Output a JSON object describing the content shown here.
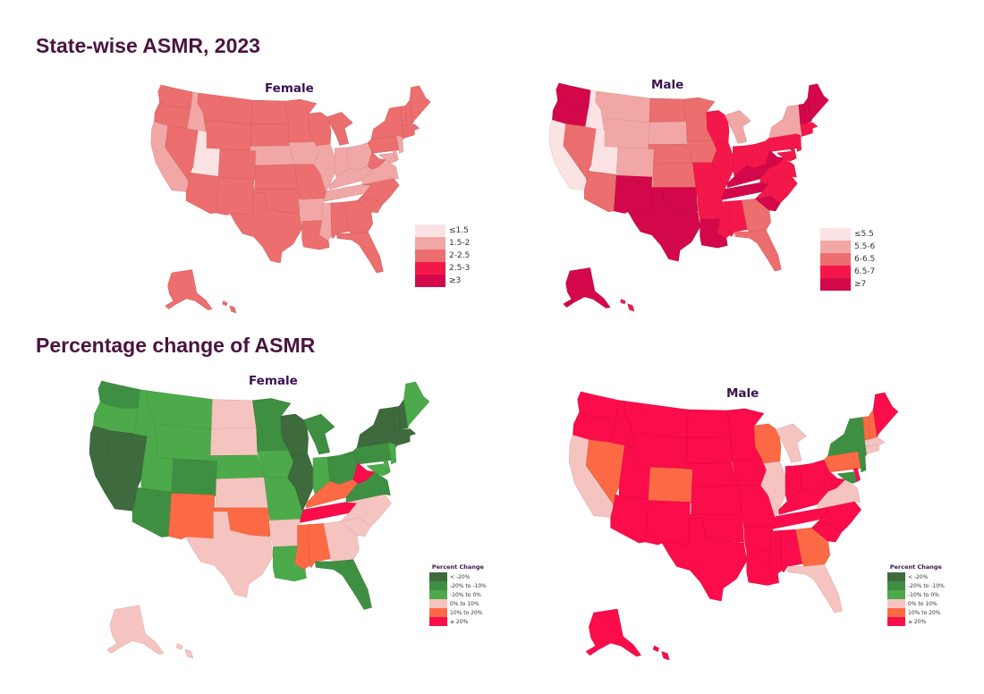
{
  "sections": [
    {
      "title": "State-wise ASMR, 2023",
      "maps": [
        {
          "title": "Female",
          "legend": {
            "title": "",
            "items": [
              {
                "label": "≤1.5",
                "color": "#fbe3e3"
              },
              {
                "label": "1.5-2",
                "color": "#f2a7a7"
              },
              {
                "label": "2-2.5",
                "color": "#ec6e6e"
              },
              {
                "label": "2.5-3",
                "color": "#f4184a"
              },
              {
                "label": "≥3",
                "color": "#d3084a"
              }
            ]
          },
          "default_class": 2,
          "states": {
            "UT": 0,
            "CA": 1,
            "ID": 1,
            "NE": 1,
            "IA": 1,
            "IL": 1,
            "IN": 1,
            "OH": 1,
            "KY": 1,
            "AR": 1,
            "MS": 1,
            "VA": 1,
            "MD": 1,
            "NJ": 1,
            "DE": 1,
            "TN": 1
          }
        },
        {
          "title": "Male",
          "legend": {
            "title": "",
            "items": [
              {
                "label": "≤5.5",
                "color": "#fbe3e3"
              },
              {
                "label": "5.5-6",
                "color": "#f2a7a7"
              },
              {
                "label": "6-6.5",
                "color": "#ec6e6e"
              },
              {
                "label": "6.5-7",
                "color": "#f4184a"
              },
              {
                "label": "≥7",
                "color": "#d3084a"
              }
            ]
          },
          "default_class": 3,
          "states": {
            "CA": 0,
            "UT": 0,
            "ID": 0,
            "MT": 1,
            "WY": 1,
            "CO": 1,
            "SD": 1,
            "MI": 1,
            "NY": 1,
            "NV": 2,
            "AZ": 2,
            "ND": 2,
            "NE": 2,
            "KS": 2,
            "IA": 2,
            "GA": 2,
            "FL": 2,
            "MN": 2,
            "OR": 4,
            "WA": 4,
            "NM": 4,
            "TX": 4,
            "OK": 4,
            "LA": 4,
            "KY": 4,
            "TN": 4,
            "WV": 4,
            "SC": 4,
            "ME": 4,
            "NH": 4,
            "VT": 4,
            "AK": 4
          }
        }
      ]
    },
    {
      "title": "Percentage change of ASMR",
      "maps": [
        {
          "title": "Female",
          "legend": {
            "title": "Percent Change",
            "items": [
              {
                "label": "< -20%",
                "color": "#3d6b3d"
              },
              {
                "label": "-20% to -10%",
                "color": "#3f8f43"
              },
              {
                "label": "-10% to 0%",
                "color": "#4caa4a"
              },
              {
                "label": "0% to 10%",
                "color": "#f6c4c0"
              },
              {
                "label": "10% to 20%",
                "color": "#fb6a45"
              },
              {
                "label": "≥ 20%",
                "color": "#fb0c4a"
              }
            ]
          },
          "default_class": 2,
          "states": {
            "CA": 0,
            "NV": 0,
            "WI": 0,
            "IL": 0,
            "NY": 0,
            "CT": 0,
            "MA": 0,
            "VT": 0,
            "NH": 0,
            "RI": 0,
            "WA": 1,
            "AZ": 1,
            "CO": 1,
            "MN": 1,
            "PA": 1,
            "OH": 1,
            "FL": 1,
            "VA": 1,
            "MI": 1,
            "ND": 3,
            "SD": 3,
            "KS": 3,
            "TX": 3,
            "AR": 3,
            "GA": 3,
            "SC": 3,
            "NC": 3,
            "AK": 3,
            "HI": 3,
            "NM": 4,
            "OK": 4,
            "MS": 4,
            "AL": 4,
            "KY": 4,
            "TN": 5,
            "WV": 5
          }
        },
        {
          "title": "Male",
          "legend": {
            "title": "Percent Change",
            "items": [
              {
                "label": "< -20%",
                "color": "#3d6b3d"
              },
              {
                "label": "-20% to -10%",
                "color": "#3f8f43"
              },
              {
                "label": "-10% to 0%",
                "color": "#4caa4a"
              },
              {
                "label": "0% to 10%",
                "color": "#f6c4c0"
              },
              {
                "label": "10% to 20%",
                "color": "#fb6a45"
              },
              {
                "label": "≥ 20%",
                "color": "#fb0c4a"
              }
            ]
          },
          "default_class": 5,
          "states": {
            "NY": 1,
            "NJ": 1,
            "MD": 1,
            "CA": 3,
            "MI": 3,
            "IL": 3,
            "VA": 3,
            "FL": 3,
            "MA": 3,
            "RI": 3,
            "CT": 3,
            "NV": 4,
            "CO": 4,
            "WI": 4,
            "PA": 4,
            "GA": 4,
            "VT": 4,
            "NH": 4
          }
        }
      ]
    }
  ]
}
